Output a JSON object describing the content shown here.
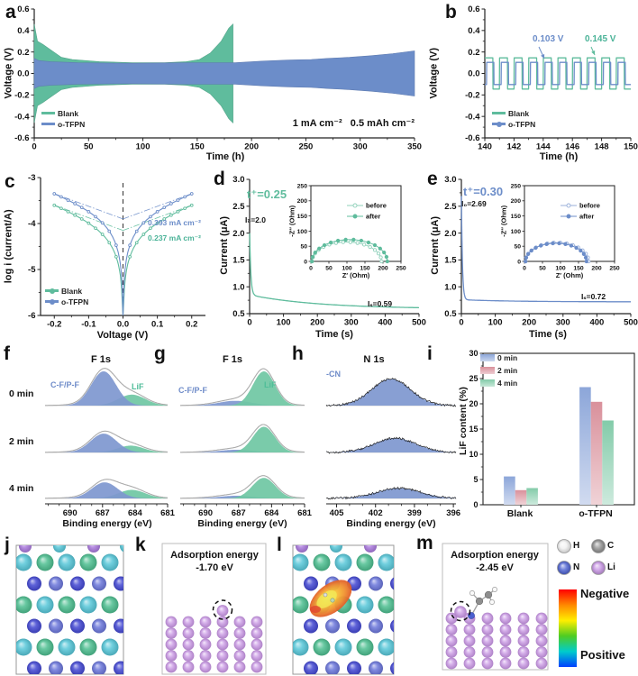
{
  "letters": {
    "a": "a",
    "b": "b",
    "c": "c",
    "d": "d",
    "e": "e",
    "f": "f",
    "g": "g",
    "h": "h",
    "i": "i",
    "j": "j",
    "k": "k",
    "l": "l",
    "m": "m"
  },
  "chart_data": [
    {
      "id": "a",
      "type": "line",
      "xlabel": "Time (h)",
      "ylabel": "Voltage (V)",
      "xlim": [
        0,
        350
      ],
      "ylim": [
        -0.6,
        0.6
      ],
      "xticks": [
        "0",
        "50",
        "100",
        "150",
        "200",
        "250",
        "300",
        "350"
      ],
      "yticks": [
        "0.6",
        "0.4",
        "0.2",
        "0.0",
        "-0.2",
        "-0.4",
        "-0.6"
      ],
      "note": "1 mA cm⁻²   0.5 mAh cm⁻²",
      "series": [
        {
          "name": "Blank",
          "color": "#5FBC9D",
          "envelope": [
            [
              0,
              0.46
            ],
            [
              3,
              0.3
            ],
            [
              8,
              0.27
            ],
            [
              15,
              0.22
            ],
            [
              25,
              0.15
            ],
            [
              35,
              0.13
            ],
            [
              60,
              0.11
            ],
            [
              90,
              0.1
            ],
            [
              120,
              0.1
            ],
            [
              140,
              0.11
            ],
            [
              152,
              0.13
            ],
            [
              162,
              0.19
            ],
            [
              172,
              0.3
            ],
            [
              179,
              0.42
            ],
            [
              183,
              0.46
            ]
          ]
        },
        {
          "name": "o-TFPN",
          "color": "#6C8DC9",
          "envelope": [
            [
              0,
              0.14
            ],
            [
              4,
              0.12
            ],
            [
              15,
              0.11
            ],
            [
              40,
              0.1
            ],
            [
              90,
              0.095
            ],
            [
              140,
              0.1
            ],
            [
              185,
              0.1
            ],
            [
              210,
              0.115
            ],
            [
              235,
              0.125
            ],
            [
              255,
              0.13
            ],
            [
              270,
              0.14
            ],
            [
              290,
              0.15
            ],
            [
              310,
              0.165
            ],
            [
              330,
              0.185
            ],
            [
              350,
              0.21
            ]
          ]
        }
      ]
    },
    {
      "id": "b",
      "type": "line",
      "xlabel": "Time (h)",
      "ylabel": "Voltage (V)",
      "xlim": [
        140,
        150
      ],
      "ylim": [
        -0.6,
        0.6
      ],
      "xticks": [
        "140",
        "142",
        "144",
        "146",
        "148",
        "150"
      ],
      "yticks": [
        "0.6",
        "0.4",
        "0.2",
        "0.0",
        "-0.2",
        "-0.4",
        "-0.6"
      ],
      "series": [
        {
          "name": "Blank",
          "color": "#5FBC9D",
          "amplitude": 0.145,
          "period": 1,
          "duty": 0.55,
          "phase": 0
        },
        {
          "name": "o-TFPN",
          "color": "#6C8DC9",
          "amplitude": 0.103,
          "period": 1,
          "duty": 0.5,
          "phase": 0.12
        }
      ],
      "annotations": [
        {
          "text": "0.103 V",
          "color": "#6C8DC9"
        },
        {
          "text": "0.145 V",
          "color": "#4BB398"
        }
      ]
    },
    {
      "id": "c",
      "type": "line",
      "xlabel": "Voltage (V)",
      "ylabel": "log i (current/A)",
      "xlim": [
        -0.24,
        0.24
      ],
      "ylim": [
        -6,
        -3
      ],
      "xticks": [
        "-0.2",
        "-0.1",
        "0.0",
        "0.1",
        "0.2"
      ],
      "yticks": [
        "-3",
        "-4",
        "-5",
        "-6"
      ],
      "series": [
        {
          "name": "Blank",
          "color": "#5FBC9D",
          "intercept": -4.15,
          "arm_end": -3.6,
          "exchange_current": "0.237 mA cm⁻²"
        },
        {
          "name": "o-TFPN",
          "color": "#6C8DC9",
          "intercept": -3.9,
          "arm_end": -3.35,
          "exchange_current": "0.393 mA cm⁻²"
        }
      ],
      "annotations": [
        {
          "text": "0.393 mA cm⁻²",
          "color": "#6C8DC9"
        },
        {
          "text": "0.237 mA cm⁻²",
          "color": "#4BB398"
        }
      ]
    },
    {
      "id": "d",
      "type": "line",
      "xlabel": "Time (s)",
      "ylabel": "Current (μA)",
      "color": "#5FBC9D",
      "xlim": [
        0,
        500
      ],
      "ylim": [
        0.5,
        3.0
      ],
      "xticks": [
        "0",
        "100",
        "200",
        "300",
        "400",
        "500"
      ],
      "yticks": [
        "3.0",
        "2.5",
        "2.0",
        "1.5",
        "1.0",
        "0.5"
      ],
      "t_plus": "t⁺=0.25",
      "i0": "I₀=2.0",
      "is": "Iₛ=0.59",
      "decay": {
        "i0": 2.0,
        "mid": 0.85,
        "is": 0.59,
        "tau_fast": 3.5,
        "tau_slow": 200
      },
      "inset": {
        "xlabel": "Z′ (Ohm)",
        "ylabel": "-Z″ (Ohm)",
        "xlim": [
          0,
          250
        ],
        "ylim": [
          0,
          250
        ],
        "ticks": [
          "0",
          "50",
          "100",
          "150",
          "200",
          "250"
        ],
        "series": [
          {
            "name": "before",
            "open": true,
            "x_start": 3,
            "x_end": 196,
            "peak": 64
          },
          {
            "name": "after",
            "open": false,
            "x_start": 3,
            "x_end": 212,
            "peak": 72
          }
        ]
      }
    },
    {
      "id": "e",
      "type": "line",
      "xlabel": "Time (s)",
      "ylabel": "Current (μA)",
      "color": "#6C8DC9",
      "xlim": [
        0,
        500
      ],
      "ylim": [
        0.5,
        3.0
      ],
      "xticks": [
        "0",
        "100",
        "200",
        "300",
        "400",
        "500"
      ],
      "yticks": [
        "3.0",
        "2.5",
        "2.0",
        "1.5",
        "1.0",
        "0.5"
      ],
      "t_plus": "t⁺=0.30",
      "i0": "I₀=2.69",
      "is": "Iₛ=0.72",
      "decay": {
        "i0": 2.69,
        "mid": 0.76,
        "is": 0.72,
        "tau_fast": 3,
        "tau_slow": 150
      },
      "inset": {
        "xlabel": "Z′ (Ohm)",
        "ylabel": "-Z″ (Ohm)",
        "xlim": [
          0,
          250
        ],
        "ylim": [
          0,
          250
        ],
        "ticks": [
          "0",
          "50",
          "100",
          "150",
          "200",
          "250"
        ],
        "series": [
          {
            "name": "before",
            "open": true,
            "x_start": 3,
            "x_end": 178,
            "peak": 62
          },
          {
            "name": "after",
            "open": false,
            "x_start": 3,
            "x_end": 172,
            "peak": 60
          }
        ]
      }
    },
    {
      "id": "f",
      "type": "area",
      "title": "F 1s",
      "xlabel": "Binding energy (eV)",
      "xlim": [
        692.3,
        681
      ],
      "xticks": [
        "690",
        "687",
        "684",
        "681"
      ],
      "envelope": true,
      "peak_labels": [
        {
          "text": "C-F/P-F",
          "color": "#6F8CC9"
        },
        {
          "text": "LiF",
          "color": "#4FBD98"
        }
      ],
      "rows": [
        {
          "label": "0 min",
          "peaks": [
            {
              "species": "C-F/P-F",
              "center": 686.9,
              "width": 1.15,
              "amp": 1.0,
              "color": "#7E97CF"
            },
            {
              "species": "LiF",
              "center": 684.3,
              "width": 1.25,
              "amp": 0.32,
              "color": "#6FC7A3"
            }
          ]
        },
        {
          "label": "2 min",
          "peaks": [
            {
              "species": "C-F/P-F",
              "center": 686.9,
              "width": 1.2,
              "amp": 0.55,
              "color": "#7E97CF"
            },
            {
              "species": "LiF",
              "center": 684.4,
              "width": 1.2,
              "amp": 0.2,
              "color": "#6FC7A3"
            }
          ]
        },
        {
          "label": "4 min",
          "peaks": [
            {
              "species": "C-F/P-F",
              "center": 686.8,
              "width": 1.2,
              "amp": 0.47,
              "color": "#7E97CF"
            },
            {
              "species": "LiF",
              "center": 684.3,
              "width": 1.25,
              "amp": 0.25,
              "color": "#6FC7A3"
            }
          ]
        }
      ]
    },
    {
      "id": "g",
      "type": "area",
      "title": "F 1s",
      "xlabel": "Binding energy (eV)",
      "xlim": [
        692.3,
        681
      ],
      "xticks": [
        "690",
        "687",
        "684",
        "681"
      ],
      "envelope": true,
      "peak_labels": [
        {
          "text": "C-F/P-F",
          "color": "#6F8CC9"
        },
        {
          "text": "LiF",
          "color": "#4FBD98"
        }
      ],
      "rows": [
        {
          "label": "0 min",
          "peaks": [
            {
              "species": "C-F/P-F",
              "center": 687.3,
              "width": 1.5,
              "amp": 0.14,
              "color": "#7E97CF"
            },
            {
              "species": "LiF",
              "center": 684.7,
              "width": 1.0,
              "amp": 1.0,
              "color": "#6FC7A3"
            }
          ]
        },
        {
          "label": "2 min",
          "peaks": [
            {
              "species": "C-F/P-F",
              "center": 687.2,
              "width": 1.5,
              "amp": 0.08,
              "color": "#7E97CF"
            },
            {
              "species": "LiF",
              "center": 684.7,
              "width": 1.0,
              "amp": 0.75,
              "color": "#6FC7A3"
            }
          ]
        },
        {
          "label": "4 min",
          "peaks": [
            {
              "species": "C-F/P-F",
              "center": 687.2,
              "width": 1.5,
              "amp": 0.08,
              "color": "#7E97CF"
            },
            {
              "species": "LiF",
              "center": 684.7,
              "width": 1.05,
              "amp": 0.6,
              "color": "#6FC7A3"
            }
          ]
        }
      ]
    },
    {
      "id": "h",
      "type": "area",
      "title": "N 1s",
      "xlabel": "Binding energy (eV)",
      "xlim": [
        405.8,
        395.8
      ],
      "xticks": [
        "405",
        "402",
        "399",
        "396"
      ],
      "noisy": true,
      "peak_labels": [
        {
          "text": "-CN",
          "color": "#6F8CC9"
        }
      ],
      "rows": [
        {
          "label": "0 min",
          "peaks": [
            {
              "species": "-CN",
              "center": 400.8,
              "width": 1.5,
              "amp": 0.78,
              "color": "#7E97CF"
            }
          ]
        },
        {
          "label": "2 min",
          "peaks": [
            {
              "species": "-CN",
              "center": 400.5,
              "width": 1.6,
              "amp": 0.42,
              "color": "#7E97CF"
            }
          ]
        },
        {
          "label": "4 min",
          "peaks": [
            {
              "species": "-CN",
              "center": 400.2,
              "width": 1.7,
              "amp": 0.3,
              "color": "#7E97CF"
            }
          ]
        }
      ]
    },
    {
      "id": "i",
      "type": "bar",
      "ylabel": "LiF content (%)",
      "ylim": [
        0,
        30
      ],
      "yticks": [
        "0",
        "5",
        "10",
        "15",
        "20",
        "25",
        "30"
      ],
      "categories": [
        "Blank",
        "o-TFPN"
      ],
      "series": [
        {
          "name": "0 min",
          "color": "#8CA6D9",
          "values": [
            5.6,
            23.3
          ]
        },
        {
          "name": "2 min",
          "color": "#D9909B",
          "values": [
            2.9,
            20.4
          ]
        },
        {
          "name": "4 min",
          "color": "#83CBA9",
          "values": [
            3.3,
            16.7
          ]
        }
      ],
      "legend_position": "top-left",
      "grid": false
    }
  ],
  "dft": {
    "k": {
      "line1": "Adsorption energy",
      "line2": "-1.70 eV"
    },
    "m": {
      "line1": "Adsorption energy",
      "line2": "-2.45 eV"
    },
    "atoms": [
      {
        "label": "H",
        "color": "#F0F0F0"
      },
      {
        "label": "C",
        "color": "#8E8E8E"
      },
      {
        "label": "N",
        "color": "#4A5FD0"
      },
      {
        "label": "Li",
        "color": "#C693E2"
      }
    ],
    "colorbar": {
      "negative": "Negative",
      "positive": "Positive",
      "stops": [
        "#FF0000",
        "#FF8800",
        "#FFEE00",
        "#4FCC22",
        "#00CCCC",
        "#0040FF"
      ]
    },
    "lattice_colors": {
      "cyan": "#57C7D8",
      "green": "#4DBE90",
      "royal": "#4348D2",
      "slate": "#6B76DB",
      "purple": "#A979DC"
    }
  }
}
